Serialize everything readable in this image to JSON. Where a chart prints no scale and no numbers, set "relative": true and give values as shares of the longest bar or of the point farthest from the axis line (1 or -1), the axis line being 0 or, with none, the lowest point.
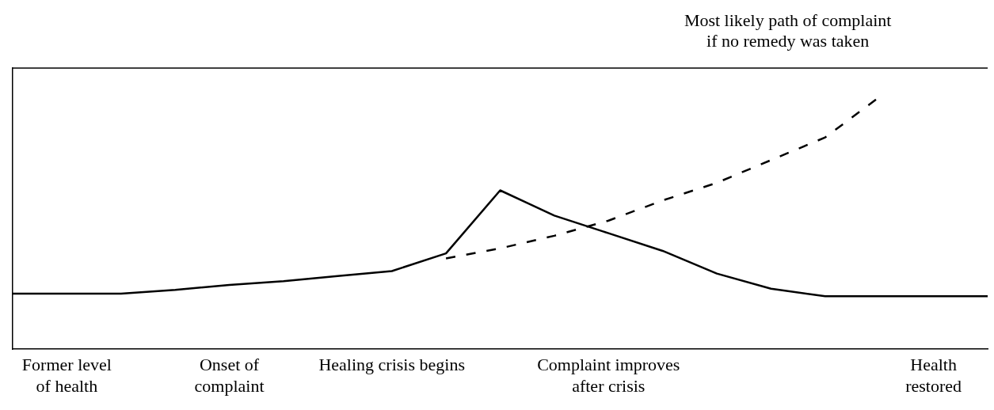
{
  "chart_data": {
    "type": "line",
    "relative": true,
    "annotations": [
      "Most likely path of complaint\nif no remedy was taken"
    ],
    "categories": [
      null,
      "Former level\nof health",
      null,
      null,
      "Onset of\ncomplaint",
      null,
      null,
      "Healing crisis begins",
      null,
      null,
      null,
      "Complaint improves\nafter crisis",
      null,
      null,
      null,
      null,
      null,
      "Health\nrestored",
      null
    ],
    "legend": false,
    "grid": false,
    "marker": "none",
    "series": [
      {
        "color": "#000000",
        "line_style": "solid",
        "values": [
          0.22,
          0.22,
          0.22,
          0.235,
          0.255,
          0.27,
          0.29,
          0.31,
          0.38,
          0.63,
          0.53,
          0.46,
          0.39,
          0.3,
          0.24,
          0.21,
          0.21,
          0.21,
          0.21
        ]
      },
      {
        "color": "#000000",
        "line_style": "dashed",
        "values": [
          null,
          null,
          null,
          null,
          null,
          null,
          null,
          null,
          0.36,
          0.4,
          0.45,
          0.51,
          0.59,
          0.66,
          0.75,
          0.84,
          1.0,
          null,
          null
        ]
      }
    ]
  }
}
